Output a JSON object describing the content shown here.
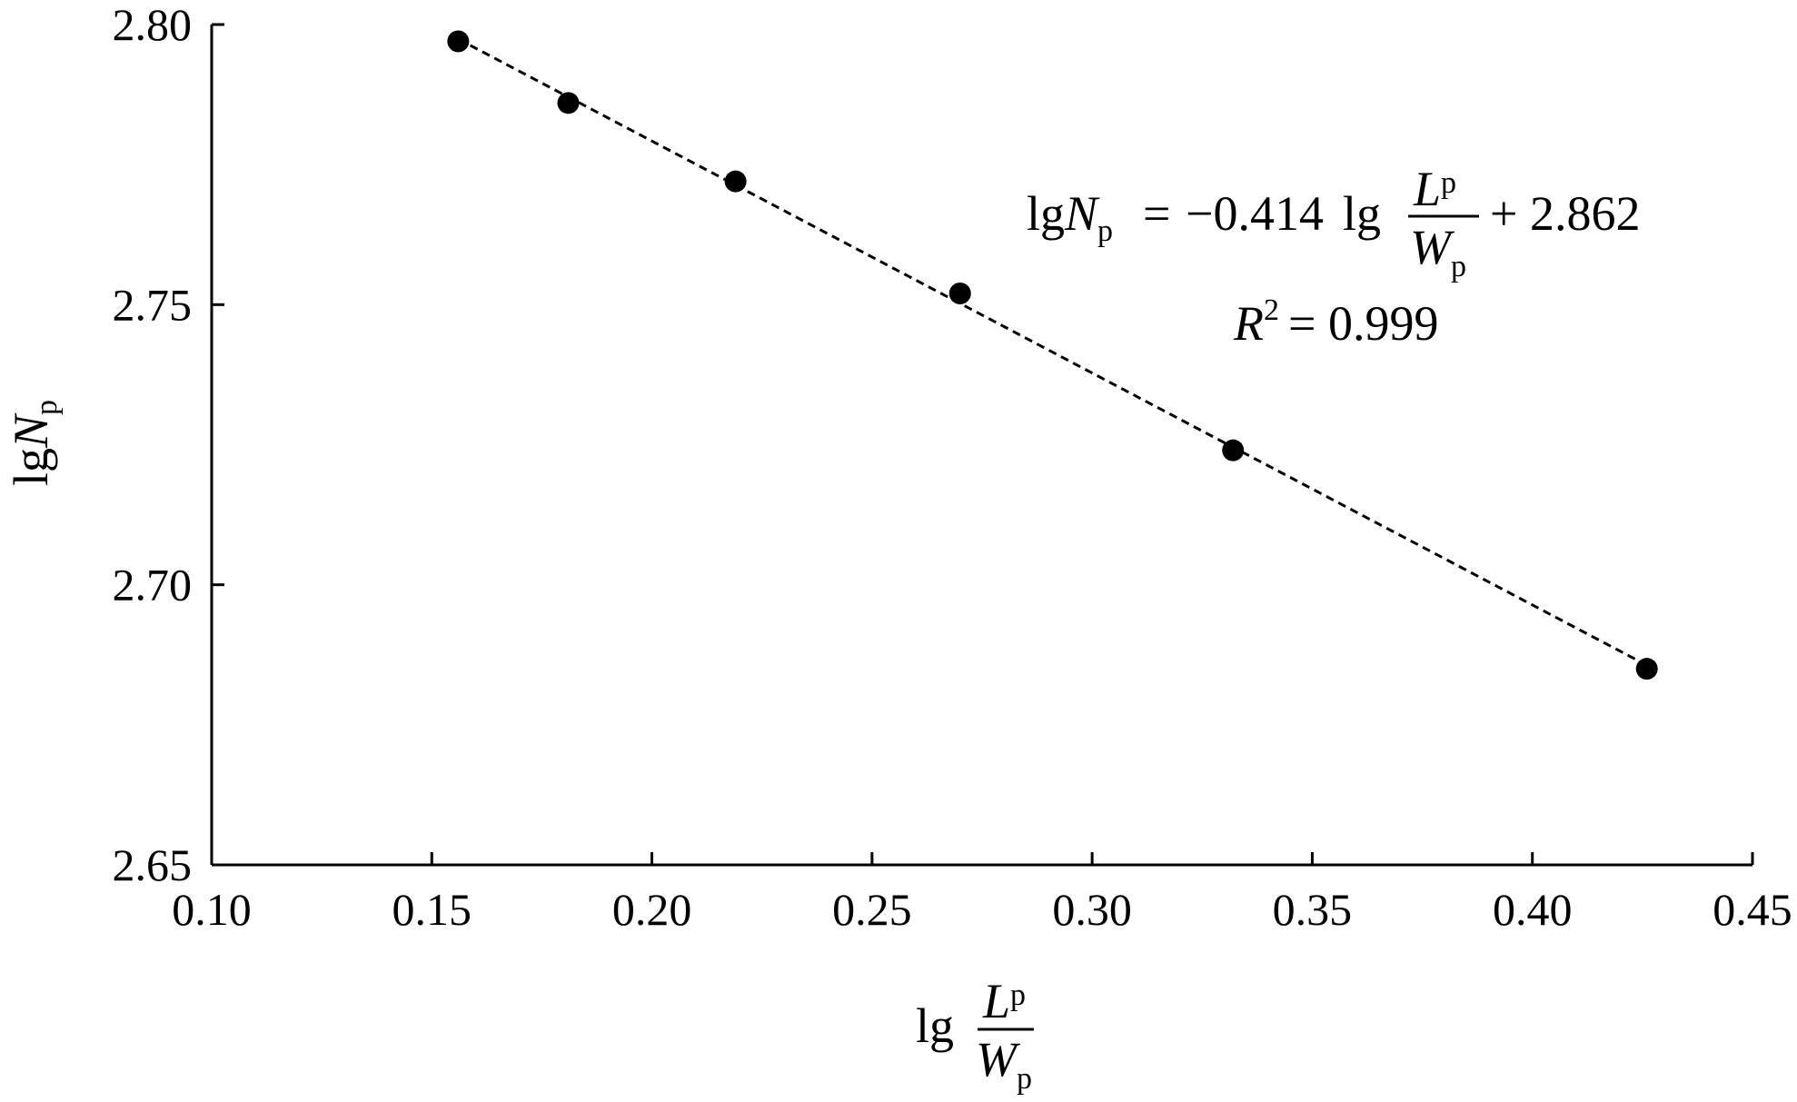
{
  "chart_data": {
    "type": "scatter",
    "x": [
      0.156,
      0.181,
      0.219,
      0.27,
      0.332,
      0.426
    ],
    "y": [
      2.797,
      2.786,
      2.772,
      2.752,
      2.724,
      2.685
    ],
    "xlim": [
      0.1,
      0.45
    ],
    "ylim": [
      2.65,
      2.8
    ],
    "x_ticks": [
      "0.10",
      "0.15",
      "0.20",
      "0.25",
      "0.30",
      "0.35",
      "0.40",
      "0.45"
    ],
    "y_ticks": [
      "2.65",
      "2.70",
      "2.75",
      "2.80"
    ],
    "xlabel": {
      "prefix": "lg",
      "numerator": "L",
      "numerator_sub": "p",
      "denominator": "W",
      "denominator_sub": "p"
    },
    "ylabel": {
      "prefix": "lg",
      "main": "N",
      "sub": "p"
    },
    "fit": {
      "slope": -0.414,
      "intercept": 2.862,
      "x_range": [
        0.156,
        0.426
      ],
      "style": "dashed"
    },
    "annotations": {
      "equation": {
        "lhs_prefix": "lg",
        "lhs_main": "N",
        "lhs_sub": "p",
        "equals": "=",
        "coef": "−0.414",
        "fn": "lg",
        "frac_num": "L",
        "frac_num_sub": "p",
        "frac_den": "W",
        "frac_den_sub": "p",
        "tail": "+ 2.862"
      },
      "r2": {
        "symbol": "R",
        "sup": "2",
        "rest": "= 0.999"
      }
    },
    "grid": false,
    "legend": "none"
  }
}
